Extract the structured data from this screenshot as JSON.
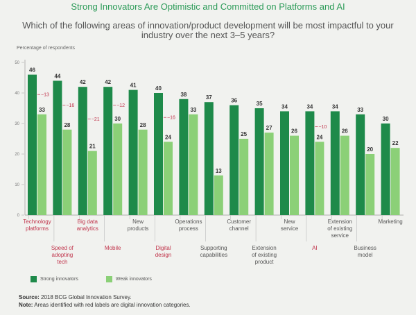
{
  "header": {
    "title": "Strong Innovators Are Optimistic and Committed on Platforms and AI",
    "subtitle": "Which of the following areas of innovation/product development will be most impactful to your industry over the next 3–5 years?"
  },
  "footer": {
    "source_label": "Source:",
    "source_text": "2018 BCG Global Innovation Survey.",
    "note_label": "Note:",
    "note_text": "Areas identified with red labels are digital innovation categories."
  },
  "chart_data": {
    "type": "bar",
    "ylabel": "Percentage of respondents",
    "ylim": [
      0,
      50
    ],
    "yticks": [
      0,
      10,
      20,
      30,
      40,
      50
    ],
    "series": [
      {
        "name": "Strong innovators",
        "color": "#1e8a4a"
      },
      {
        "name": "Weak innovators",
        "color": "#8bd077"
      }
    ],
    "categories": [
      {
        "label": [
          "Technology",
          "platforms"
        ],
        "strong": 46,
        "weak": 33,
        "gap": "−13",
        "digital": true,
        "row": "top"
      },
      {
        "label": [
          "Speed of",
          "adopting",
          "tech"
        ],
        "strong": 44,
        "weak": 28,
        "gap": "−16",
        "digital": true,
        "row": "bottom"
      },
      {
        "label": [
          "Big data",
          "analytics"
        ],
        "strong": 42,
        "weak": 21,
        "gap": "−21",
        "digital": true,
        "row": "top"
      },
      {
        "label": [
          "Mobile"
        ],
        "strong": 42,
        "weak": 30,
        "gap": "−12",
        "digital": true,
        "row": "bottom"
      },
      {
        "label": [
          "New",
          "products"
        ],
        "strong": 41,
        "weak": 28,
        "gap": "",
        "digital": false,
        "row": "top"
      },
      {
        "label": [
          "Digital",
          "design"
        ],
        "strong": 40,
        "weak": 24,
        "gap": "−16",
        "digital": true,
        "row": "bottom"
      },
      {
        "label": [
          "Operations",
          "process"
        ],
        "strong": 38,
        "weak": 33,
        "gap": "",
        "digital": false,
        "row": "top"
      },
      {
        "label": [
          "Supporting",
          "capabilities"
        ],
        "strong": 37,
        "weak": 13,
        "gap": "",
        "digital": false,
        "row": "bottom"
      },
      {
        "label": [
          "Customer",
          "channel"
        ],
        "strong": 36,
        "weak": 25,
        "gap": "",
        "digital": false,
        "row": "top"
      },
      {
        "label": [
          "Extension",
          "of existing",
          "product"
        ],
        "strong": 35,
        "weak": 27,
        "gap": "",
        "digital": false,
        "row": "bottom"
      },
      {
        "label": [
          "New",
          "service"
        ],
        "strong": 34,
        "weak": 26,
        "gap": "",
        "digital": false,
        "row": "top"
      },
      {
        "label": [
          "AI"
        ],
        "strong": 34,
        "weak": 24,
        "gap": "−10",
        "digital": true,
        "row": "bottom"
      },
      {
        "label": [
          "Extension",
          "of existing",
          "service"
        ],
        "strong": 34,
        "weak": 26,
        "gap": "",
        "digital": false,
        "row": "top"
      },
      {
        "label": [
          "Business",
          "model"
        ],
        "strong": 33,
        "weak": 20,
        "gap": "",
        "digital": false,
        "row": "bottom"
      },
      {
        "label": [
          "Marketing"
        ],
        "strong": 30,
        "weak": 22,
        "gap": "",
        "digital": false,
        "row": "top"
      }
    ],
    "label_colors": {
      "digital": "#c0334a",
      "normal": "#555555"
    }
  }
}
